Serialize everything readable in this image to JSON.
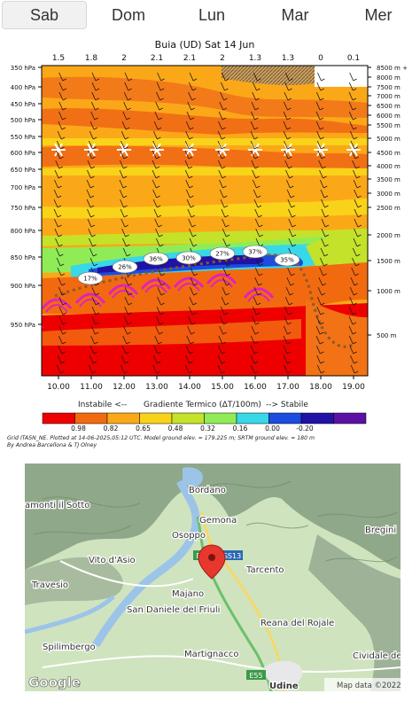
{
  "tabs": [
    {
      "label": "Sab",
      "selected": true
    },
    {
      "label": "Dom",
      "selected": false
    },
    {
      "label": "Lun",
      "selected": false
    },
    {
      "label": "Mar",
      "selected": false
    },
    {
      "label": "Mer",
      "selected": false
    }
  ],
  "chart": {
    "title": "Buia (UD) Sat 14 Jun",
    "top_values": [
      "1.5",
      "1.8",
      "2",
      "2.1",
      "2.1",
      "2",
      "1.3",
      "1.3",
      "0",
      "0.1"
    ],
    "pressure_ticks": [
      "350 hPa",
      "400 hPa",
      "450 hPa",
      "500 hPa",
      "550 hPa",
      "600 hPa",
      "650 hPa",
      "700 hPa",
      "750 hPa",
      "800 hPa",
      "850 hPa",
      "900 hPa",
      "950 hPa"
    ],
    "altitude_ticks": [
      "8500 m +",
      "8000 m",
      "7500 m",
      "7000 m",
      "6500 m",
      "6000 m",
      "5500 m",
      "5000 m",
      "4500 m",
      "4000 m",
      "3500 m",
      "3000 m",
      "2500 m",
      "2000 m",
      "1500 m",
      "1000 m",
      "500 m"
    ],
    "time_labels": [
      "10.00",
      "11.00",
      "12.00",
      "13.00",
      "14.00",
      "15.00",
      "16.00",
      "17.00",
      "18.00",
      "19.00"
    ],
    "bubble_labels": [
      "17%",
      "26%",
      "36%",
      "30%",
      "27%",
      "37%",
      "35%"
    ],
    "legend": {
      "left_text": "Instabile <--",
      "center_text": "Gradiente Termico (ΔT/100m)",
      "right_text": "--> Stabile",
      "values": [
        "0.98",
        "0.82",
        "0.65",
        "0.48",
        "0.32",
        "0.16",
        "0.00",
        "-0.20"
      ],
      "colors": [
        "#ee0000",
        "#f26a10",
        "#fba818",
        "#f9d21a",
        "#c4e22a",
        "#90ec56",
        "#38d8e8",
        "#1c4ce0",
        "#2012a6",
        "#5c10a4"
      ]
    },
    "credit_line1": "Grid ITA5N_NE. Plotted at 14-06-2025,05:12 UTC. Model ground elev. = 179.225 m; SRTM ground elev. = 180 m",
    "credit_line2": "By Andrea Barcellona & TJ Olney"
  },
  "map": {
    "places": [
      "Bordano",
      "Gemona",
      "Osoppo",
      "SS13",
      "E55",
      "Tarcento",
      "Vito d'Asio",
      "Travesio",
      "Majano",
      "San Daniele del Friuli",
      "Spilimbergo",
      "Reana del Rojale",
      "Martignacco",
      "Udine",
      "E55",
      "Bregini",
      "Cividale del Friuli",
      "amonti il Sotto"
    ],
    "google_label": "Google",
    "attribution": "Map data ©2022"
  }
}
